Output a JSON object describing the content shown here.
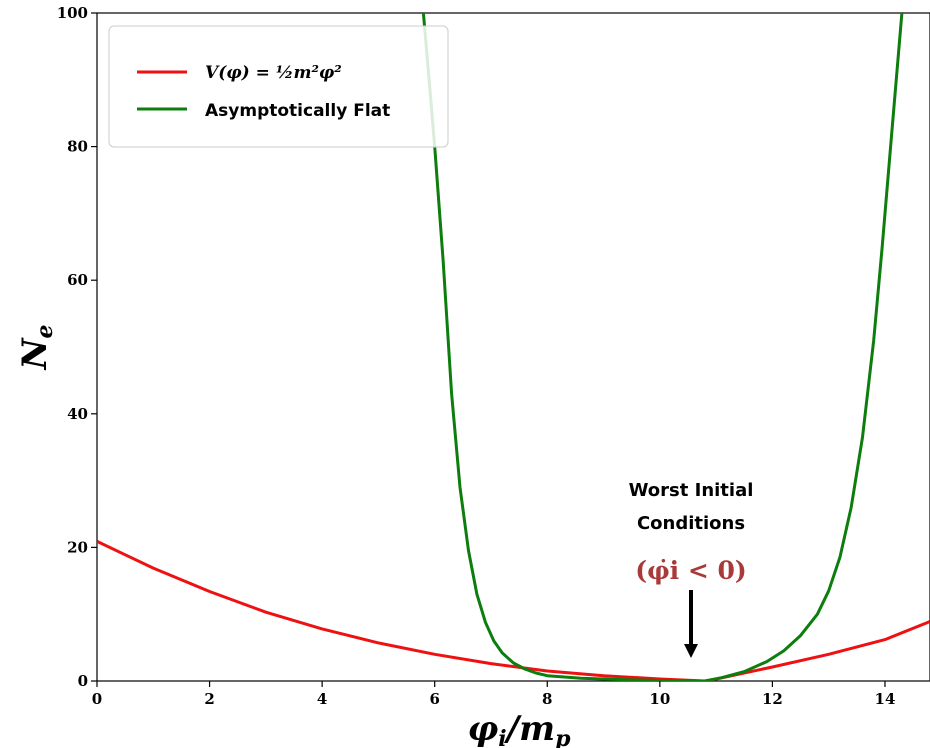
{
  "chart_data": {
    "type": "line",
    "xlabel": "φi/mp",
    "ylabel": "Ne",
    "xlim": [
      0,
      14.8
    ],
    "ylim": [
      0,
      100
    ],
    "xticks": [
      0,
      2,
      4,
      6,
      8,
      10,
      12,
      14
    ],
    "yticks": [
      0,
      20,
      40,
      60,
      80,
      100
    ],
    "grid": false,
    "legend_position": "top-left",
    "series": [
      {
        "name": "V(φ) = ½m²φ²",
        "color": "#ee1111",
        "x": [
          0,
          1,
          2,
          3,
          4,
          5,
          6,
          7,
          8,
          9,
          10,
          10.8,
          11,
          12,
          13,
          14,
          14.8
        ],
        "y": [
          20.9,
          16.9,
          13.4,
          10.3,
          7.8,
          5.7,
          4.0,
          2.6,
          1.5,
          0.8,
          0.3,
          0.0,
          0.3,
          2.1,
          4.0,
          6.2,
          8.9
        ]
      },
      {
        "name": "Asymptotically Flat",
        "color": "#0d7d0d",
        "x": [
          5.8,
          5.9,
          6.0,
          6.15,
          6.3,
          6.45,
          6.6,
          6.75,
          6.9,
          7.05,
          7.2,
          7.4,
          7.6,
          7.8,
          8.0,
          8.3,
          8.6,
          9.0,
          9.4,
          9.8,
          10.2,
          10.5,
          10.8,
          11.1,
          11.5,
          11.9,
          12.2,
          12.5,
          12.8,
          13.0,
          13.2,
          13.4,
          13.6,
          13.8,
          13.95,
          14.1,
          14.3
        ],
        "y": [
          100,
          90,
          80,
          63,
          43,
          29,
          19.5,
          13,
          8.8,
          6.0,
          4.2,
          2.7,
          1.8,
          1.2,
          0.8,
          0.6,
          0.4,
          0.3,
          0.2,
          0.1,
          0.05,
          0.0,
          0.0,
          0.5,
          1.4,
          2.9,
          4.5,
          6.8,
          10.0,
          13.5,
          18.5,
          26.0,
          36.5,
          51.0,
          65.0,
          80.0,
          100
        ]
      }
    ],
    "annotation": {
      "line1": "Worst Initial",
      "line2": "Conditions",
      "math": "(φ̇i < 0)",
      "math_color": "#a83a3a",
      "arrow_x": 10.65
    }
  },
  "legend": {
    "item1": "V(φ) = ½m²φ²",
    "item2": "Asymptotically Flat"
  }
}
